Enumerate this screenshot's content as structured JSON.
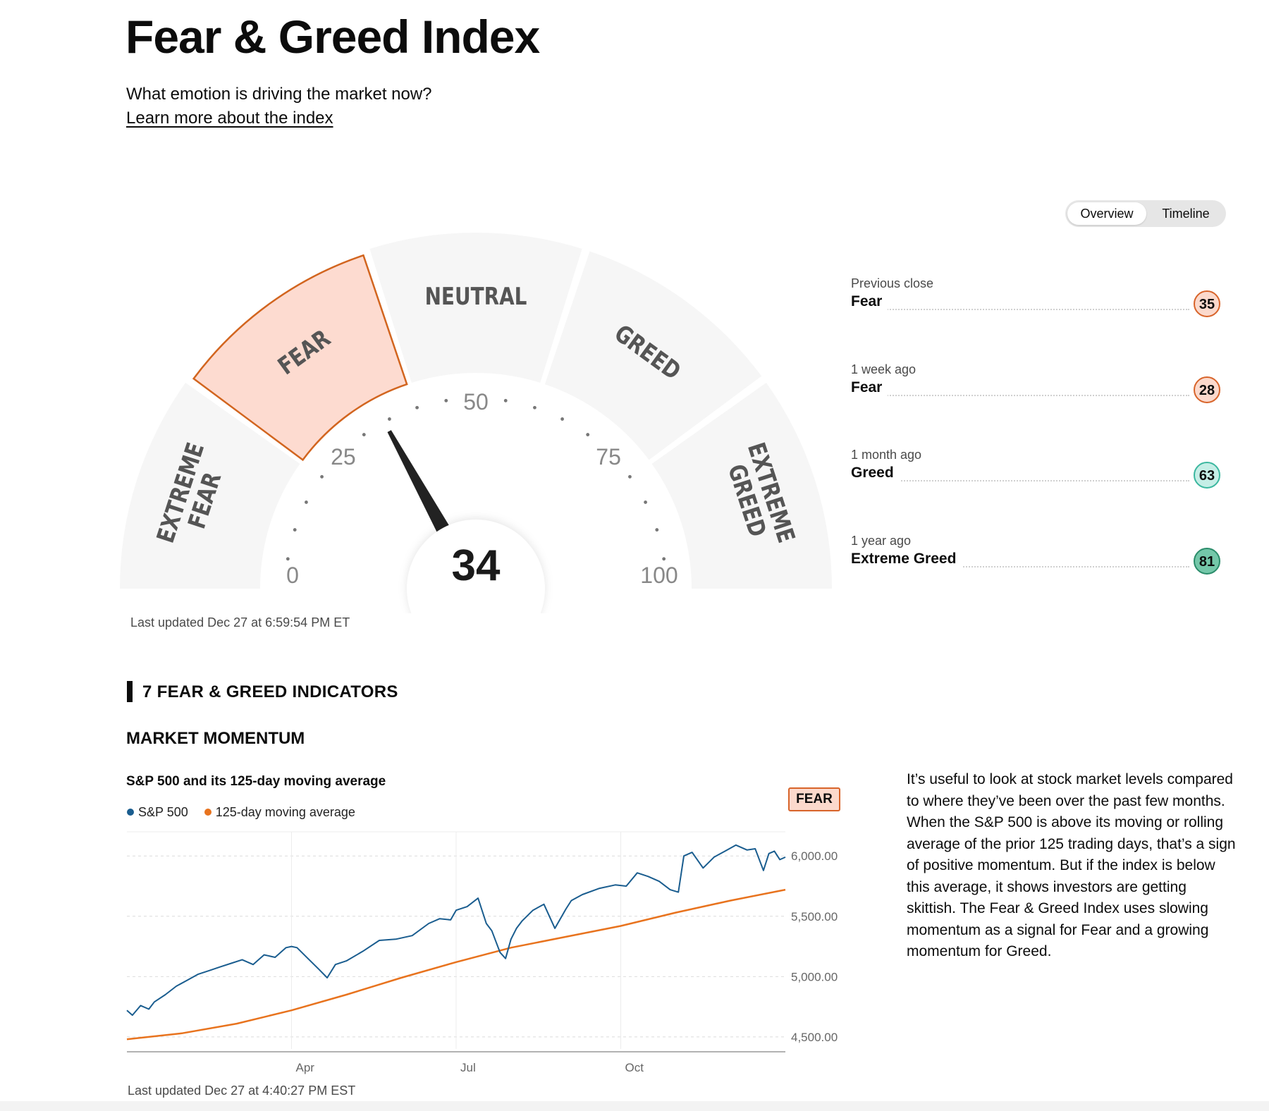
{
  "header": {
    "title": "Fear & Greed Index",
    "subtitle": "What emotion is driving the market now?",
    "learn_more": "Learn more about the index"
  },
  "view_toggle": {
    "overview": "Overview",
    "timeline": "Timeline",
    "selected": "Overview"
  },
  "gauge": {
    "value": 34,
    "value_label": "34",
    "segments": [
      "EXTREME FEAR",
      "FEAR",
      "NEUTRAL",
      "GREED",
      "EXTREME GREED"
    ],
    "active_segment": "FEAR",
    "tick_labels": [
      "0",
      "25",
      "50",
      "75",
      "100"
    ],
    "last_updated": "Last updated Dec 27 at 6:59:54 PM ET",
    "colors": {
      "active_fill": "#fddbd0",
      "active_stroke": "#d2651f",
      "segment_fill": "#f6f6f6",
      "needle": "#222222"
    }
  },
  "history": [
    {
      "when": "Previous close",
      "rating": "Fear",
      "value": "35",
      "fill": "#fbd9cc",
      "stroke": "#d8642a"
    },
    {
      "when": "1 week ago",
      "rating": "Fear",
      "value": "28",
      "fill": "#fbd9cc",
      "stroke": "#d8642a"
    },
    {
      "when": "1 month ago",
      "rating": "Greed",
      "value": "63",
      "fill": "#c5eee6",
      "stroke": "#3bb79f"
    },
    {
      "when": "1 year ago",
      "rating": "Extreme Greed",
      "value": "81",
      "fill": "#74c7a9",
      "stroke": "#2a8c6a"
    }
  ],
  "indicators": {
    "heading": "7 FEAR & GREED INDICATORS",
    "section_title": "MARKET MOMENTUM",
    "chart_title": "S&P 500 and its 125-day moving average",
    "rating_badge": "FEAR",
    "description": "It’s useful to look at stock market levels compared to where they’ve been over the past few months. When the S&P 500 is above its moving or rolling average of the prior 125 trading days, that’s a sign of positive momentum. But if the index is below this average, it shows investors are getting skittish. The Fear & Greed Index uses slowing momentum as a signal for Fear and a growing momentum for Greed.",
    "last_updated": "Last updated Dec 27 at 4:40:27 PM EST"
  },
  "chart_data": {
    "type": "line",
    "title": "S&P 500 and its 125-day moving average",
    "x_tick_labels": [
      "Apr",
      "Jul",
      "Oct"
    ],
    "x_tick_positions": [
      3,
      6,
      9
    ],
    "x_range": [
      0,
      12
    ],
    "y_ticks": [
      4500,
      5000,
      5500,
      6000
    ],
    "y_tick_labels": [
      "4,500.00",
      "5,000.00",
      "5,500.00",
      "6,000.00"
    ],
    "ylim": [
      4400,
      6200
    ],
    "grid": true,
    "legend_placement": "top-left",
    "series": [
      {
        "name": "S&P 500",
        "color": "#1a5d8f",
        "x": [
          0,
          0.1,
          0.25,
          0.4,
          0.5,
          0.7,
          0.9,
          1.1,
          1.3,
          1.5,
          1.7,
          1.9,
          2.1,
          2.3,
          2.5,
          2.7,
          2.9,
          3.0,
          3.1,
          3.3,
          3.5,
          3.65,
          3.8,
          4.0,
          4.3,
          4.6,
          4.9,
          5.2,
          5.5,
          5.7,
          5.9,
          6.0,
          6.2,
          6.4,
          6.55,
          6.65,
          6.8,
          6.9,
          7.0,
          7.1,
          7.2,
          7.4,
          7.6,
          7.8,
          8.0,
          8.1,
          8.3,
          8.6,
          8.9,
          9.1,
          9.3,
          9.5,
          9.7,
          9.9,
          10.05,
          10.15,
          10.3,
          10.5,
          10.7,
          10.9,
          11.1,
          11.3,
          11.45,
          11.6,
          11.7,
          11.8,
          11.9,
          12.0
        ],
        "y": [
          4720,
          4680,
          4760,
          4730,
          4790,
          4850,
          4920,
          4970,
          5020,
          5050,
          5080,
          5110,
          5140,
          5100,
          5180,
          5160,
          5240,
          5250,
          5240,
          5150,
          5060,
          4990,
          5100,
          5130,
          5210,
          5300,
          5310,
          5340,
          5440,
          5480,
          5470,
          5550,
          5580,
          5650,
          5440,
          5380,
          5200,
          5150,
          5310,
          5400,
          5460,
          5550,
          5600,
          5400,
          5560,
          5630,
          5680,
          5730,
          5760,
          5750,
          5860,
          5830,
          5790,
          5720,
          5700,
          6000,
          6030,
          5900,
          5990,
          6040,
          6090,
          6050,
          6060,
          5880,
          6020,
          6040,
          5970,
          5990
        ]
      },
      {
        "name": "125-day moving average",
        "color": "#e8731e",
        "x": [
          0,
          1,
          2,
          3,
          4,
          5,
          6,
          7,
          8,
          9,
          10,
          11,
          12
        ],
        "y": [
          4480,
          4530,
          4610,
          4720,
          4850,
          4990,
          5120,
          5240,
          5330,
          5420,
          5530,
          5630,
          5720
        ]
      }
    ]
  }
}
